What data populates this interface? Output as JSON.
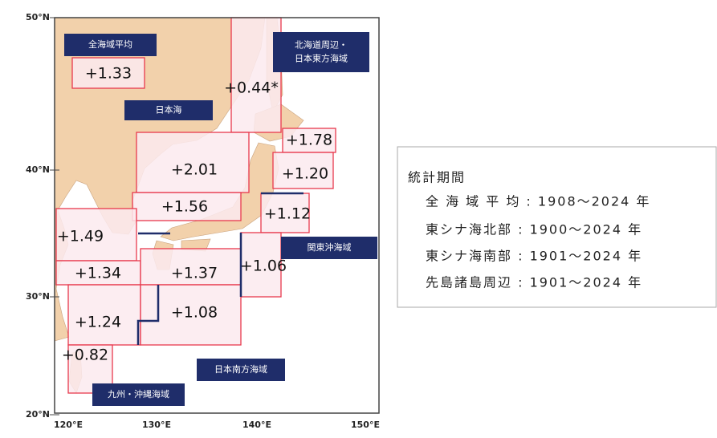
{
  "axes": {
    "lat_labels": [
      "50°N",
      "40°N",
      "30°N",
      "20°N"
    ],
    "lon_labels": [
      "120°E",
      "130°E",
      "140°E",
      "150°E"
    ]
  },
  "region_labels": [
    "全海域平均",
    "日本海",
    "北海道周辺・",
    "日本東方海域",
    "関東沖海域",
    "日本南方海域",
    "九州・沖縄海域"
  ],
  "regions": [
    "+1.33",
    "+0.44*",
    "+1.78",
    "+1.20",
    "+2.01",
    "+1.56",
    "+1.12",
    "+1.49",
    "+1.34",
    "+1.37",
    "+1.06",
    "+1.24",
    "+1.08",
    "+0.82"
  ],
  "legend": {
    "title": "統計期間",
    "lines": [
      "全 海 域 平 均 : 1908～2024 年",
      "東シナ海北部 : 1900～2024 年",
      "東シナ海南部 : 1901～2024 年",
      "先島諸島周辺 : 1901～2024 年"
    ]
  }
}
